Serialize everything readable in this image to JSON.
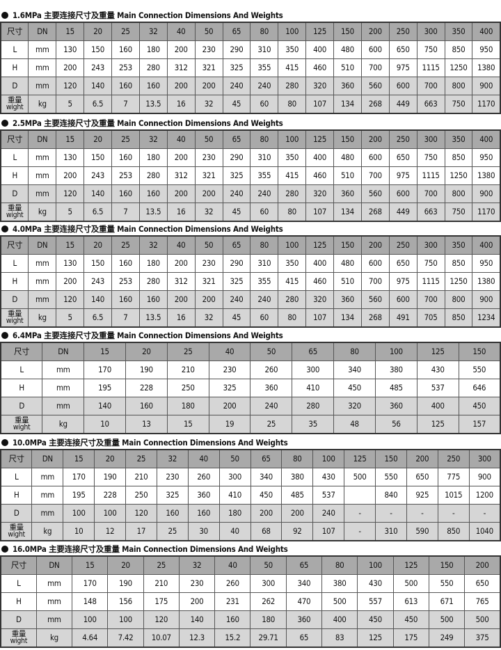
{
  "tables": [
    {
      "title": "1.6MPa 主要连接尺寸及重量 Main Connection  Dimensions And Weights",
      "header": [
        "尺寸",
        "DN",
        "15",
        "20",
        "25",
        "32",
        "40",
        "50",
        "65",
        "80",
        "100",
        "125",
        "150",
        "200",
        "250",
        "300",
        "350",
        "400"
      ],
      "rows": [
        {
          "label": "L",
          "unit": "mm",
          "values": [
            "130",
            "150",
            "160",
            "180",
            "200",
            "230",
            "290",
            "310",
            "350",
            "400",
            "480",
            "600",
            "650",
            "750",
            "850",
            "950"
          ]
        },
        {
          "label": "H",
          "unit": "mm",
          "values": [
            "200",
            "243",
            "253",
            "280",
            "312",
            "321",
            "325",
            "355",
            "415",
            "460",
            "510",
            "700",
            "975",
            "1115",
            "1250",
            "1380"
          ]
        },
        {
          "label": "D",
          "unit": "mm",
          "values": [
            "120",
            "140",
            "160",
            "160",
            "200",
            "200",
            "240",
            "240",
            "280",
            "320",
            "360",
            "560",
            "600",
            "700",
            "800",
            "900"
          ]
        },
        {
          "label": "重量",
          "label2": "wight",
          "unit": "kg",
          "values": [
            "5",
            "6.5",
            "7",
            "13.5",
            "16",
            "32",
            "45",
            "60",
            "80",
            "107",
            "134",
            "268",
            "449",
            "663",
            "750",
            "1170"
          ]
        }
      ]
    },
    {
      "title": "2.5MPa 主要连接尺寸及重量 Main Connection  Dimensions And Weights",
      "header": [
        "尺寸",
        "DN",
        "15",
        "20",
        "25",
        "32",
        "40",
        "50",
        "65",
        "80",
        "100",
        "125",
        "150",
        "200",
        "250",
        "300",
        "350",
        "400"
      ],
      "rows": [
        {
          "label": "L",
          "unit": "mm",
          "values": [
            "130",
            "150",
            "160",
            "180",
            "200",
            "230",
            "290",
            "310",
            "350",
            "400",
            "480",
            "600",
            "650",
            "750",
            "850",
            "950"
          ]
        },
        {
          "label": "H",
          "unit": "mm",
          "values": [
            "200",
            "243",
            "253",
            "280",
            "312",
            "321",
            "325",
            "355",
            "415",
            "460",
            "510",
            "700",
            "975",
            "1115",
            "1250",
            "1380"
          ]
        },
        {
          "label": "D",
          "unit": "mm",
          "values": [
            "120",
            "140",
            "160",
            "160",
            "200",
            "200",
            "240",
            "240",
            "280",
            "320",
            "360",
            "560",
            "600",
            "700",
            "800",
            "900"
          ]
        },
        {
          "label": "重量",
          "label2": "wight",
          "unit": "kg",
          "values": [
            "5",
            "6.5",
            "7",
            "13.5",
            "16",
            "32",
            "45",
            "60",
            "80",
            "107",
            "134",
            "268",
            "449",
            "663",
            "750",
            "1170"
          ]
        }
      ]
    },
    {
      "title": "4.0MPa 主要连接尺寸及重量 Main Connection  Dimensions And Weights",
      "header": [
        "尺寸",
        "DN",
        "15",
        "20",
        "25",
        "32",
        "40",
        "50",
        "65",
        "80",
        "100",
        "125",
        "150",
        "200",
        "250",
        "300",
        "350",
        "400"
      ],
      "rows": [
        {
          "label": "L",
          "unit": "mm",
          "values": [
            "130",
            "150",
            "160",
            "180",
            "200",
            "230",
            "290",
            "310",
            "350",
            "400",
            "480",
            "600",
            "650",
            "750",
            "850",
            "950"
          ]
        },
        {
          "label": "H",
          "unit": "mm",
          "values": [
            "200",
            "243",
            "253",
            "280",
            "312",
            "321",
            "325",
            "355",
            "415",
            "460",
            "510",
            "700",
            "975",
            "1115",
            "1250",
            "1380"
          ]
        },
        {
          "label": "D",
          "unit": "mm",
          "values": [
            "120",
            "140",
            "160",
            "160",
            "200",
            "200",
            "240",
            "240",
            "280",
            "320",
            "360",
            "560",
            "600",
            "700",
            "800",
            "900"
          ]
        },
        {
          "label": "重量",
          "label2": "wight",
          "unit": "kg",
          "values": [
            "5",
            "6.5",
            "7",
            "13.5",
            "16",
            "32",
            "45",
            "60",
            "80",
            "107",
            "134",
            "268",
            "491",
            "705",
            "850",
            "1234"
          ]
        }
      ]
    },
    {
      "title": "6.4MPa 主要连接尺寸及重量 Main Connection  Dimensions And Weights",
      "header": [
        "尺寸",
        "DN",
        "15",
        "20",
        "25",
        "40",
        "50",
        "65",
        "80",
        "100",
        "125",
        "150"
      ],
      "rows": [
        {
          "label": "L",
          "unit": "mm",
          "values": [
            "170",
            "190",
            "210",
            "230",
            "260",
            "300",
            "340",
            "380",
            "430",
            "550"
          ]
        },
        {
          "label": "H",
          "unit": "mm",
          "values": [
            "195",
            "228",
            "250",
            "325",
            "360",
            "410",
            "450",
            "485",
            "537",
            "646"
          ]
        },
        {
          "label": "D",
          "unit": "mm",
          "values": [
            "140",
            "160",
            "180",
            "200",
            "240",
            "280",
            "320",
            "360",
            "400",
            "450"
          ]
        },
        {
          "label": "重量",
          "label2": "wight",
          "unit": "kg",
          "values": [
            "10",
            "13",
            "15",
            "19",
            "25",
            "35",
            "48",
            "56",
            "125",
            "157"
          ]
        }
      ]
    },
    {
      "title": "10.0MPa 主要连接尺寸及重量 Main Connection  Dimensions And Weights",
      "header": [
        "尺寸",
        "DN",
        "15",
        "20",
        "25",
        "32",
        "40",
        "50",
        "65",
        "80",
        "100",
        "125",
        "150",
        "200",
        "250",
        "300"
      ],
      "rows": [
        {
          "label": "L",
          "unit": "mm",
          "values": [
            "170",
            "190",
            "210",
            "230",
            "260",
            "300",
            "340",
            "380",
            "430",
            "500",
            "550",
            "650",
            "775",
            "900"
          ]
        },
        {
          "label": "H",
          "unit": "mm",
          "values": [
            "195",
            "228",
            "250",
            "325",
            "360",
            "410",
            "450",
            "485",
            "537",
            "",
            "840",
            "925",
            "1015",
            "1200"
          ]
        },
        {
          "label": "D",
          "unit": "mm",
          "values": [
            "100",
            "100",
            "120",
            "160",
            "160",
            "180",
            "200",
            "200",
            "240",
            "-",
            "-",
            "-",
            "-",
            "-"
          ]
        },
        {
          "label": "重量",
          "label2": "wight",
          "unit": "kg",
          "values": [
            "10",
            "12",
            "17",
            "25",
            "30",
            "40",
            "68",
            "92",
            "107",
            "-",
            "310",
            "590",
            "850",
            "1040"
          ]
        }
      ]
    },
    {
      "title": "16.0MPa 主要连接尺寸及重量 Main Connection  Dimensions And Weights",
      "header": [
        "尺寸",
        "DN",
        "15",
        "20",
        "25",
        "32",
        "40",
        "50",
        "65",
        "80",
        "100",
        "125",
        "150",
        "200"
      ],
      "rows": [
        {
          "label": "L",
          "unit": "mm",
          "values": [
            "170",
            "190",
            "210",
            "230",
            "260",
            "300",
            "340",
            "380",
            "430",
            "500",
            "550",
            "650"
          ]
        },
        {
          "label": "H",
          "unit": "mm",
          "values": [
            "148",
            "156",
            "175",
            "200",
            "231",
            "262",
            "470",
            "500",
            "557",
            "613",
            "671",
            "765"
          ]
        },
        {
          "label": "D",
          "unit": "mm",
          "values": [
            "100",
            "100",
            "120",
            "140",
            "160",
            "180",
            "360",
            "400",
            "450",
            "450",
            "500",
            "500"
          ]
        },
        {
          "label": "重量",
          "label2": "wight",
          "unit": "kg",
          "values": [
            "4.64",
            "7.42",
            "10.07",
            "12.3",
            "15.2",
            "29.71",
            "65",
            "83",
            "125",
            "175",
            "249",
            "375"
          ]
        }
      ]
    }
  ]
}
